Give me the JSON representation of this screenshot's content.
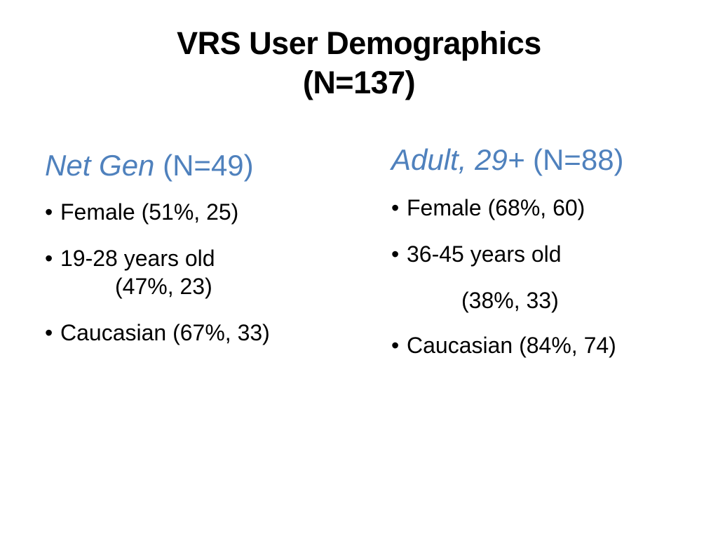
{
  "slide": {
    "title_line1": "VRS User Demographics",
    "title_line2": "(N=137)",
    "accent_color": "#4f81bd",
    "left": {
      "heading_italic": "Net Gen",
      "heading_count": "(N=49)",
      "items": [
        {
          "bullet": "•",
          "text": "Female (51%, 25)"
        },
        {
          "bullet": "•",
          "text": "19-28 years old",
          "continuation": "(47%, 23)"
        },
        {
          "bullet": "•",
          "text": "Caucasian (67%, 33)"
        }
      ]
    },
    "right": {
      "heading_italic": "Adult, 29+",
      "heading_count": "(N=88)",
      "items": [
        {
          "bullet": "•",
          "text": "Female (68%, 60)"
        },
        {
          "bullet": "•",
          "text": "36-45 years old",
          "continuation": "(38%, 33)"
        },
        {
          "bullet": "•",
          "text": "Caucasian (84%, 74)"
        }
      ]
    }
  }
}
